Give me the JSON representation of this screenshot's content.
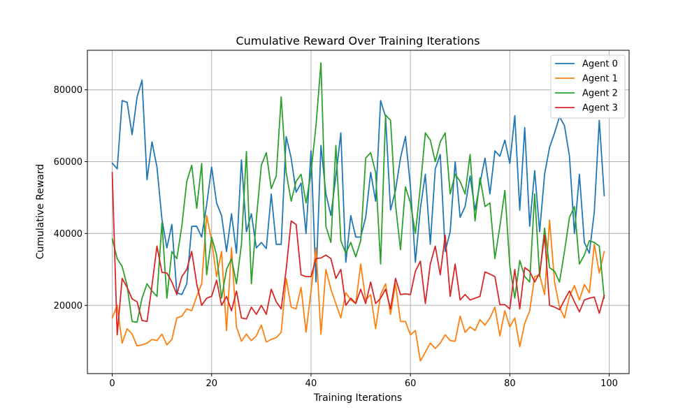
{
  "chart_data": {
    "type": "line",
    "title": "Cumulative Reward Over Training Iterations",
    "xlabel": "Training Iterations",
    "ylabel": "Cumulative Reward",
    "xlim": [
      -5,
      104
    ],
    "ylim": [
      1000,
      91000
    ],
    "xticks": [
      0,
      20,
      40,
      60,
      80,
      100
    ],
    "yticks": [
      20000,
      40000,
      60000,
      80000
    ],
    "xtick_labels": [
      "0",
      "20",
      "40",
      "60",
      "80",
      "100"
    ],
    "ytick_labels": [
      "20000",
      "40000",
      "60000",
      "80000"
    ],
    "grid": true,
    "legend_position": "top-right",
    "x_start": 0,
    "series": [
      {
        "name": "Agent 0",
        "color": "#1f77b4",
        "values": [
          59600,
          58000,
          77000,
          76500,
          67500,
          78000,
          82700,
          55000,
          65500,
          58500,
          44000,
          36000,
          42500,
          23500,
          23000,
          26000,
          42000,
          42000,
          39000,
          48000,
          58500,
          48500,
          45000,
          35000,
          45500,
          34500,
          60500,
          40500,
          45500,
          36000,
          37500,
          35800,
          51000,
          37000,
          37000,
          67000,
          61000,
          51500,
          54000,
          40000,
          63000,
          26500,
          64500,
          51000,
          45000,
          56000,
          68000,
          32000,
          45000,
          39000,
          39000,
          44500,
          57000,
          49000,
          77000,
          72500,
          46500,
          52000,
          61000,
          67000,
          53000,
          32000,
          47000,
          56500,
          37000,
          58000,
          62000,
          35000,
          40500,
          60000,
          44500,
          47500,
          56000,
          46500,
          54000,
          61000,
          51000,
          63000,
          61500,
          66000,
          59500,
          72800,
          46500,
          69500,
          42000,
          57500,
          40500,
          56500,
          64000,
          68000,
          72500,
          70000,
          61500,
          40000,
          56500,
          37500,
          34500,
          46000,
          71500,
          50500
        ]
      },
      {
        "name": "Agent 1",
        "color": "#ff7f0e",
        "values": [
          16500,
          20000,
          9500,
          13500,
          12000,
          8700,
          9000,
          9500,
          10500,
          10200,
          12000,
          9000,
          10500,
          16500,
          17000,
          19000,
          18500,
          22500,
          26000,
          45000,
          38000,
          28000,
          35000,
          13000,
          36000,
          14000,
          10000,
          12000,
          10200,
          11500,
          14500,
          9800,
          10500,
          11000,
          12500,
          27500,
          19500,
          19000,
          25000,
          12500,
          24000,
          36000,
          12000,
          30000,
          24500,
          20500,
          16500,
          23500,
          21500,
          20500,
          31500,
          21500,
          23000,
          13500,
          23000,
          26000,
          17500,
          26000,
          15500,
          15500,
          11800,
          13000,
          4500,
          7000,
          9500,
          8000,
          9500,
          11800,
          10200,
          10000,
          17000,
          12500,
          14000,
          13000,
          16000,
          14500,
          16500,
          19500,
          11500,
          18500,
          14000,
          16500,
          8500,
          15000,
          18500,
          28000,
          28500,
          23000,
          43700,
          26500,
          19500,
          16500,
          22500,
          25500,
          21500,
          25800,
          23500,
          37000,
          29000,
          35000
        ]
      },
      {
        "name": "Agent 2",
        "color": "#2ca02c",
        "values": [
          38500,
          33000,
          30800,
          25500,
          15500,
          15300,
          22000,
          26000,
          24000,
          22500,
          43000,
          22000,
          35000,
          33000,
          42000,
          54500,
          59000,
          47000,
          59500,
          28500,
          39000,
          34000,
          22000,
          30000,
          33000,
          26000,
          37000,
          62800,
          26000,
          44000,
          59000,
          62500,
          52500,
          56000,
          78000,
          57000,
          49000,
          54500,
          56500,
          48500,
          57000,
          70000,
          87500,
          42000,
          37500,
          64500,
          38000,
          34500,
          37500,
          33500,
          38000,
          61000,
          62500,
          57000,
          31500,
          73000,
          71500,
          48000,
          35500,
          53000,
          48500,
          40000,
          53000,
          68000,
          66000,
          60000,
          65500,
          68000,
          51000,
          56500,
          54500,
          51000,
          62000,
          43500,
          55500,
          47500,
          48500,
          33000,
          42000,
          52000,
          31000,
          22000,
          32500,
          28000,
          26500,
          51000,
          28000,
          41500,
          30500,
          29500,
          26500,
          35000,
          44500,
          47500,
          31500,
          34000,
          38000,
          37500,
          36500,
          22000
        ]
      },
      {
        "name": "Agent 3",
        "color": "#d62728",
        "values": [
          57000,
          11800,
          27500,
          25000,
          21800,
          21000,
          15800,
          15500,
          25500,
          36500,
          29200,
          29000,
          26500,
          23000,
          28000,
          30000,
          35000,
          26000,
          20000,
          22000,
          22500,
          27000,
          20000,
          22500,
          18500,
          24000,
          16500,
          16200,
          19500,
          17500,
          20000,
          17500,
          24500,
          21000,
          19000,
          30000,
          43500,
          42500,
          28500,
          28000,
          28000,
          33000,
          33200,
          34000,
          33000,
          27500,
          30000,
          20000,
          22000,
          20500,
          24500,
          20500,
          26500,
          20500,
          22000,
          24500,
          19000,
          27500,
          23000,
          23200,
          23000,
          29500,
          32300,
          20500,
          31500,
          36500,
          28500,
          39500,
          22500,
          31500,
          21500,
          23000,
          21500,
          22000,
          22500,
          29300,
          28700,
          28000,
          20200,
          20200,
          19000,
          30000,
          19000,
          30500,
          29500,
          26500,
          29000,
          39500,
          20000,
          19500,
          18800,
          21500,
          24000,
          21000,
          18200,
          21500,
          22000,
          22300,
          17800,
          22800
        ]
      }
    ]
  }
}
